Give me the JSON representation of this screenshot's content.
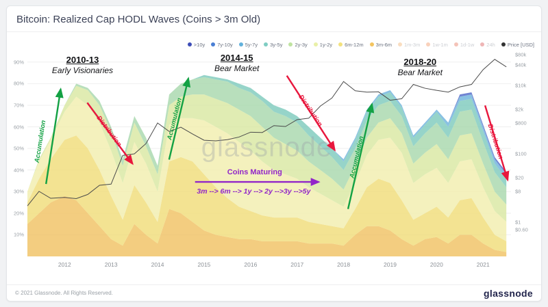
{
  "header": {
    "title": "Bitcoin: Realized Cap HODL Waves (Coins > 3m Old)"
  },
  "watermark": "glassnode",
  "footer": {
    "copyright": "© 2021 Glassnode. All Rights Reserved.",
    "logo": "glassnode"
  },
  "legend": {
    "items": [
      {
        "label": ">10y",
        "color": "#3d4db7",
        "muted": false
      },
      {
        "label": "7y-10y",
        "color": "#4a7fd4",
        "muted": false
      },
      {
        "label": "5y-7y",
        "color": "#62b1dc",
        "muted": false
      },
      {
        "label": "3y-5y",
        "color": "#7fcdc3",
        "muted": false
      },
      {
        "label": "2y-3y",
        "color": "#bfe3a0",
        "muted": false
      },
      {
        "label": "1y-2y",
        "color": "#e9f0a8",
        "muted": false
      },
      {
        "label": "6m-12m",
        "color": "#f3e27d",
        "muted": false
      },
      {
        "label": "3m-6m",
        "color": "#f3c45f",
        "muted": false
      },
      {
        "label": "1m-3m",
        "color": "#f0a04e",
        "muted": true
      },
      {
        "label": "1w-1m",
        "color": "#ee7d3f",
        "muted": true
      },
      {
        "label": "1d-1w",
        "color": "#e25537",
        "muted": true
      },
      {
        "label": "24h",
        "color": "#cf2f2f",
        "muted": true
      },
      {
        "label": "Price [USD]",
        "color": "#333333",
        "muted": false
      }
    ]
  },
  "annotations": {
    "era1": {
      "title": "2010-13",
      "subtitle": "Early Visionaries"
    },
    "era2": {
      "title": "2014-15",
      "subtitle": "Bear Market"
    },
    "era3": {
      "title": "2018-20",
      "subtitle": "Bear Market"
    },
    "accumulation": "Accumulation",
    "distribution": "Distribution",
    "maturing_title": "Coins Maturing",
    "maturing_seq": "3m --> 6m --> 1y --> 2y -->3y -->5y",
    "colors": {
      "accumulation": "#13a144",
      "distribution": "#e8173d",
      "maturing": "#9125c9"
    }
  },
  "axes": {
    "left_ticks": [
      {
        "value": 10,
        "label": "10%"
      },
      {
        "value": 20,
        "label": "20%"
      },
      {
        "value": 30,
        "label": "30%"
      },
      {
        "value": 40,
        "label": "40%"
      },
      {
        "value": 50,
        "label": "50%"
      },
      {
        "value": 60,
        "label": "60%"
      },
      {
        "value": 70,
        "label": "70%"
      },
      {
        "value": 80,
        "label": "80%"
      },
      {
        "value": 90,
        "label": "90%"
      }
    ],
    "right_ticks": [
      {
        "value": 80000,
        "label": "$80k"
      },
      {
        "value": 40000,
        "label": "$40k"
      },
      {
        "value": 10000,
        "label": "$10k"
      },
      {
        "value": 2000,
        "label": "$2k"
      },
      {
        "value": 800,
        "label": "$800"
      },
      {
        "value": 100,
        "label": "$100"
      },
      {
        "value": 20,
        "label": "$20"
      },
      {
        "value": 8,
        "label": "$8"
      },
      {
        "value": 1,
        "label": "$1"
      },
      {
        "value": 0.6,
        "label": "$0.60"
      }
    ],
    "x_ticks": [
      {
        "value": 2012,
        "label": "2012"
      },
      {
        "value": 2013,
        "label": "2013"
      },
      {
        "value": 2014,
        "label": "2014"
      },
      {
        "value": 2015,
        "label": "2015"
      },
      {
        "value": 2016,
        "label": "2016"
      },
      {
        "value": 2017,
        "label": "2017"
      },
      {
        "value": 2018,
        "label": "2018"
      },
      {
        "value": 2019,
        "label": "2019"
      },
      {
        "value": 2020,
        "label": "2020"
      },
      {
        "value": 2021,
        "label": "2021"
      }
    ]
  },
  "chart_data": {
    "type": "area",
    "stacked": true,
    "title": "Bitcoin: Realized Cap HODL Waves (Coins > 3m Old)",
    "x_unit": "year",
    "x_range": [
      2011.2,
      2021.6
    ],
    "y_left": {
      "unit": "% of realized cap",
      "min": 0,
      "max": 95
    },
    "y_right": {
      "unit": "USD",
      "scale": "log",
      "min": 0.1,
      "max": 100000
    },
    "x": [
      2011.2,
      2011.45,
      2011.7,
      2012.0,
      2012.25,
      2012.5,
      2012.75,
      2013.0,
      2013.25,
      2013.5,
      2013.75,
      2014.0,
      2014.25,
      2014.5,
      2014.75,
      2015.0,
      2015.25,
      2015.5,
      2015.75,
      2016.0,
      2016.25,
      2016.5,
      2016.75,
      2017.0,
      2017.25,
      2017.5,
      2017.75,
      2018.0,
      2018.25,
      2018.5,
      2018.75,
      2019.0,
      2019.25,
      2019.5,
      2019.75,
      2020.0,
      2020.25,
      2020.5,
      2020.75,
      2021.0,
      2021.25,
      2021.5
    ],
    "series": [
      {
        "name": "3m-6m",
        "color": "#f0c264",
        "values": [
          15,
          20,
          25,
          28,
          26,
          20,
          14,
          8,
          5,
          15,
          10,
          6,
          22,
          20,
          16,
          12,
          10,
          9,
          8,
          8,
          7,
          7,
          7,
          7,
          6,
          6,
          6,
          5,
          10,
          14,
          14,
          12,
          8,
          5,
          8,
          9,
          6,
          10,
          10,
          6,
          3,
          2
        ]
      },
      {
        "name": "6m-12m",
        "color": "#f0dd7a",
        "values": [
          10,
          16,
          20,
          26,
          30,
          30,
          26,
          20,
          12,
          18,
          15,
          10,
          22,
          26,
          28,
          26,
          22,
          18,
          15,
          13,
          12,
          11,
          11,
          11,
          10,
          9,
          8,
          8,
          12,
          18,
          22,
          22,
          18,
          12,
          12,
          14,
          12,
          16,
          17,
          12,
          7,
          5
        ]
      },
      {
        "name": "1y-2y",
        "color": "#f2eeae",
        "values": [
          5,
          8,
          9,
          13,
          18,
          20,
          22,
          21,
          17,
          20,
          18,
          14,
          17,
          18,
          20,
          25,
          28,
          30,
          30,
          28,
          25,
          22,
          20,
          18,
          16,
          14,
          12,
          10,
          12,
          15,
          18,
          21,
          22,
          17,
          18,
          18,
          16,
          18,
          18,
          14,
          11,
          9
        ]
      },
      {
        "name": "2y-3y",
        "color": "#d9e8a2",
        "values": [
          0,
          1,
          1,
          3,
          5,
          7,
          8,
          9,
          8,
          9,
          8,
          8,
          9,
          10,
          11,
          12,
          13,
          14,
          15,
          16,
          16,
          15,
          14,
          13,
          12,
          11,
          10,
          8,
          8,
          8,
          8,
          9,
          9,
          9,
          10,
          11,
          11,
          12,
          12,
          11,
          9,
          8
        ]
      },
      {
        "name": "3y-5y",
        "color": "#a8d8ad",
        "values": [
          0,
          0,
          0,
          0,
          1,
          1,
          2,
          2,
          3,
          3,
          4,
          4,
          5,
          6,
          7,
          8,
          9,
          10,
          10,
          11,
          12,
          12,
          13,
          13,
          12,
          11,
          10,
          9,
          8,
          8,
          8,
          8,
          8,
          8,
          9,
          10,
          10,
          11,
          11,
          10,
          9,
          8
        ]
      },
      {
        "name": "5y-7y",
        "color": "#7fcbbd",
        "values": [
          0,
          0,
          0,
          0,
          0,
          0,
          0,
          0,
          0,
          0,
          0,
          0,
          0,
          0,
          0,
          1,
          1,
          1,
          2,
          2,
          2,
          3,
          3,
          3,
          4,
          4,
          4,
          4,
          4,
          4,
          4,
          4,
          4,
          4,
          4,
          5,
          5,
          5,
          5,
          5,
          4,
          4
        ]
      },
      {
        "name": "7y-10y",
        "color": "#6fb3dc",
        "values": [
          0,
          0,
          0,
          0,
          0,
          0,
          0,
          0,
          0,
          0,
          0,
          0,
          0,
          0,
          0,
          0,
          0,
          0,
          0,
          0,
          0,
          0,
          0,
          0,
          0,
          0,
          0,
          1,
          1,
          1,
          1,
          1,
          1,
          1,
          1,
          1,
          2,
          2,
          2,
          2,
          2,
          2
        ]
      },
      {
        "name": ">10y",
        "color": "#5069c8",
        "values": [
          0,
          0,
          0,
          0,
          0,
          0,
          0,
          0,
          0,
          0,
          0,
          0,
          0,
          0,
          0,
          0,
          0,
          0,
          0,
          0,
          0,
          0,
          0,
          0,
          0,
          0,
          0,
          0,
          0,
          0,
          0,
          0,
          0,
          0,
          0,
          0,
          0,
          1,
          1,
          1,
          1,
          1
        ]
      }
    ],
    "price": {
      "name": "Price [USD]",
      "color": "#4a4a4a",
      "values": [
        3,
        8,
        5,
        5.3,
        4.9,
        6.5,
        12,
        13,
        90,
        100,
        200,
        800,
        450,
        600,
        380,
        250,
        240,
        260,
        310,
        430,
        420,
        670,
        630,
        1000,
        1100,
        2500,
        4300,
        13000,
        7000,
        6400,
        6500,
        3700,
        4100,
        10700,
        8300,
        7200,
        6400,
        9100,
        10700,
        29000,
        58000,
        35000
      ]
    }
  }
}
